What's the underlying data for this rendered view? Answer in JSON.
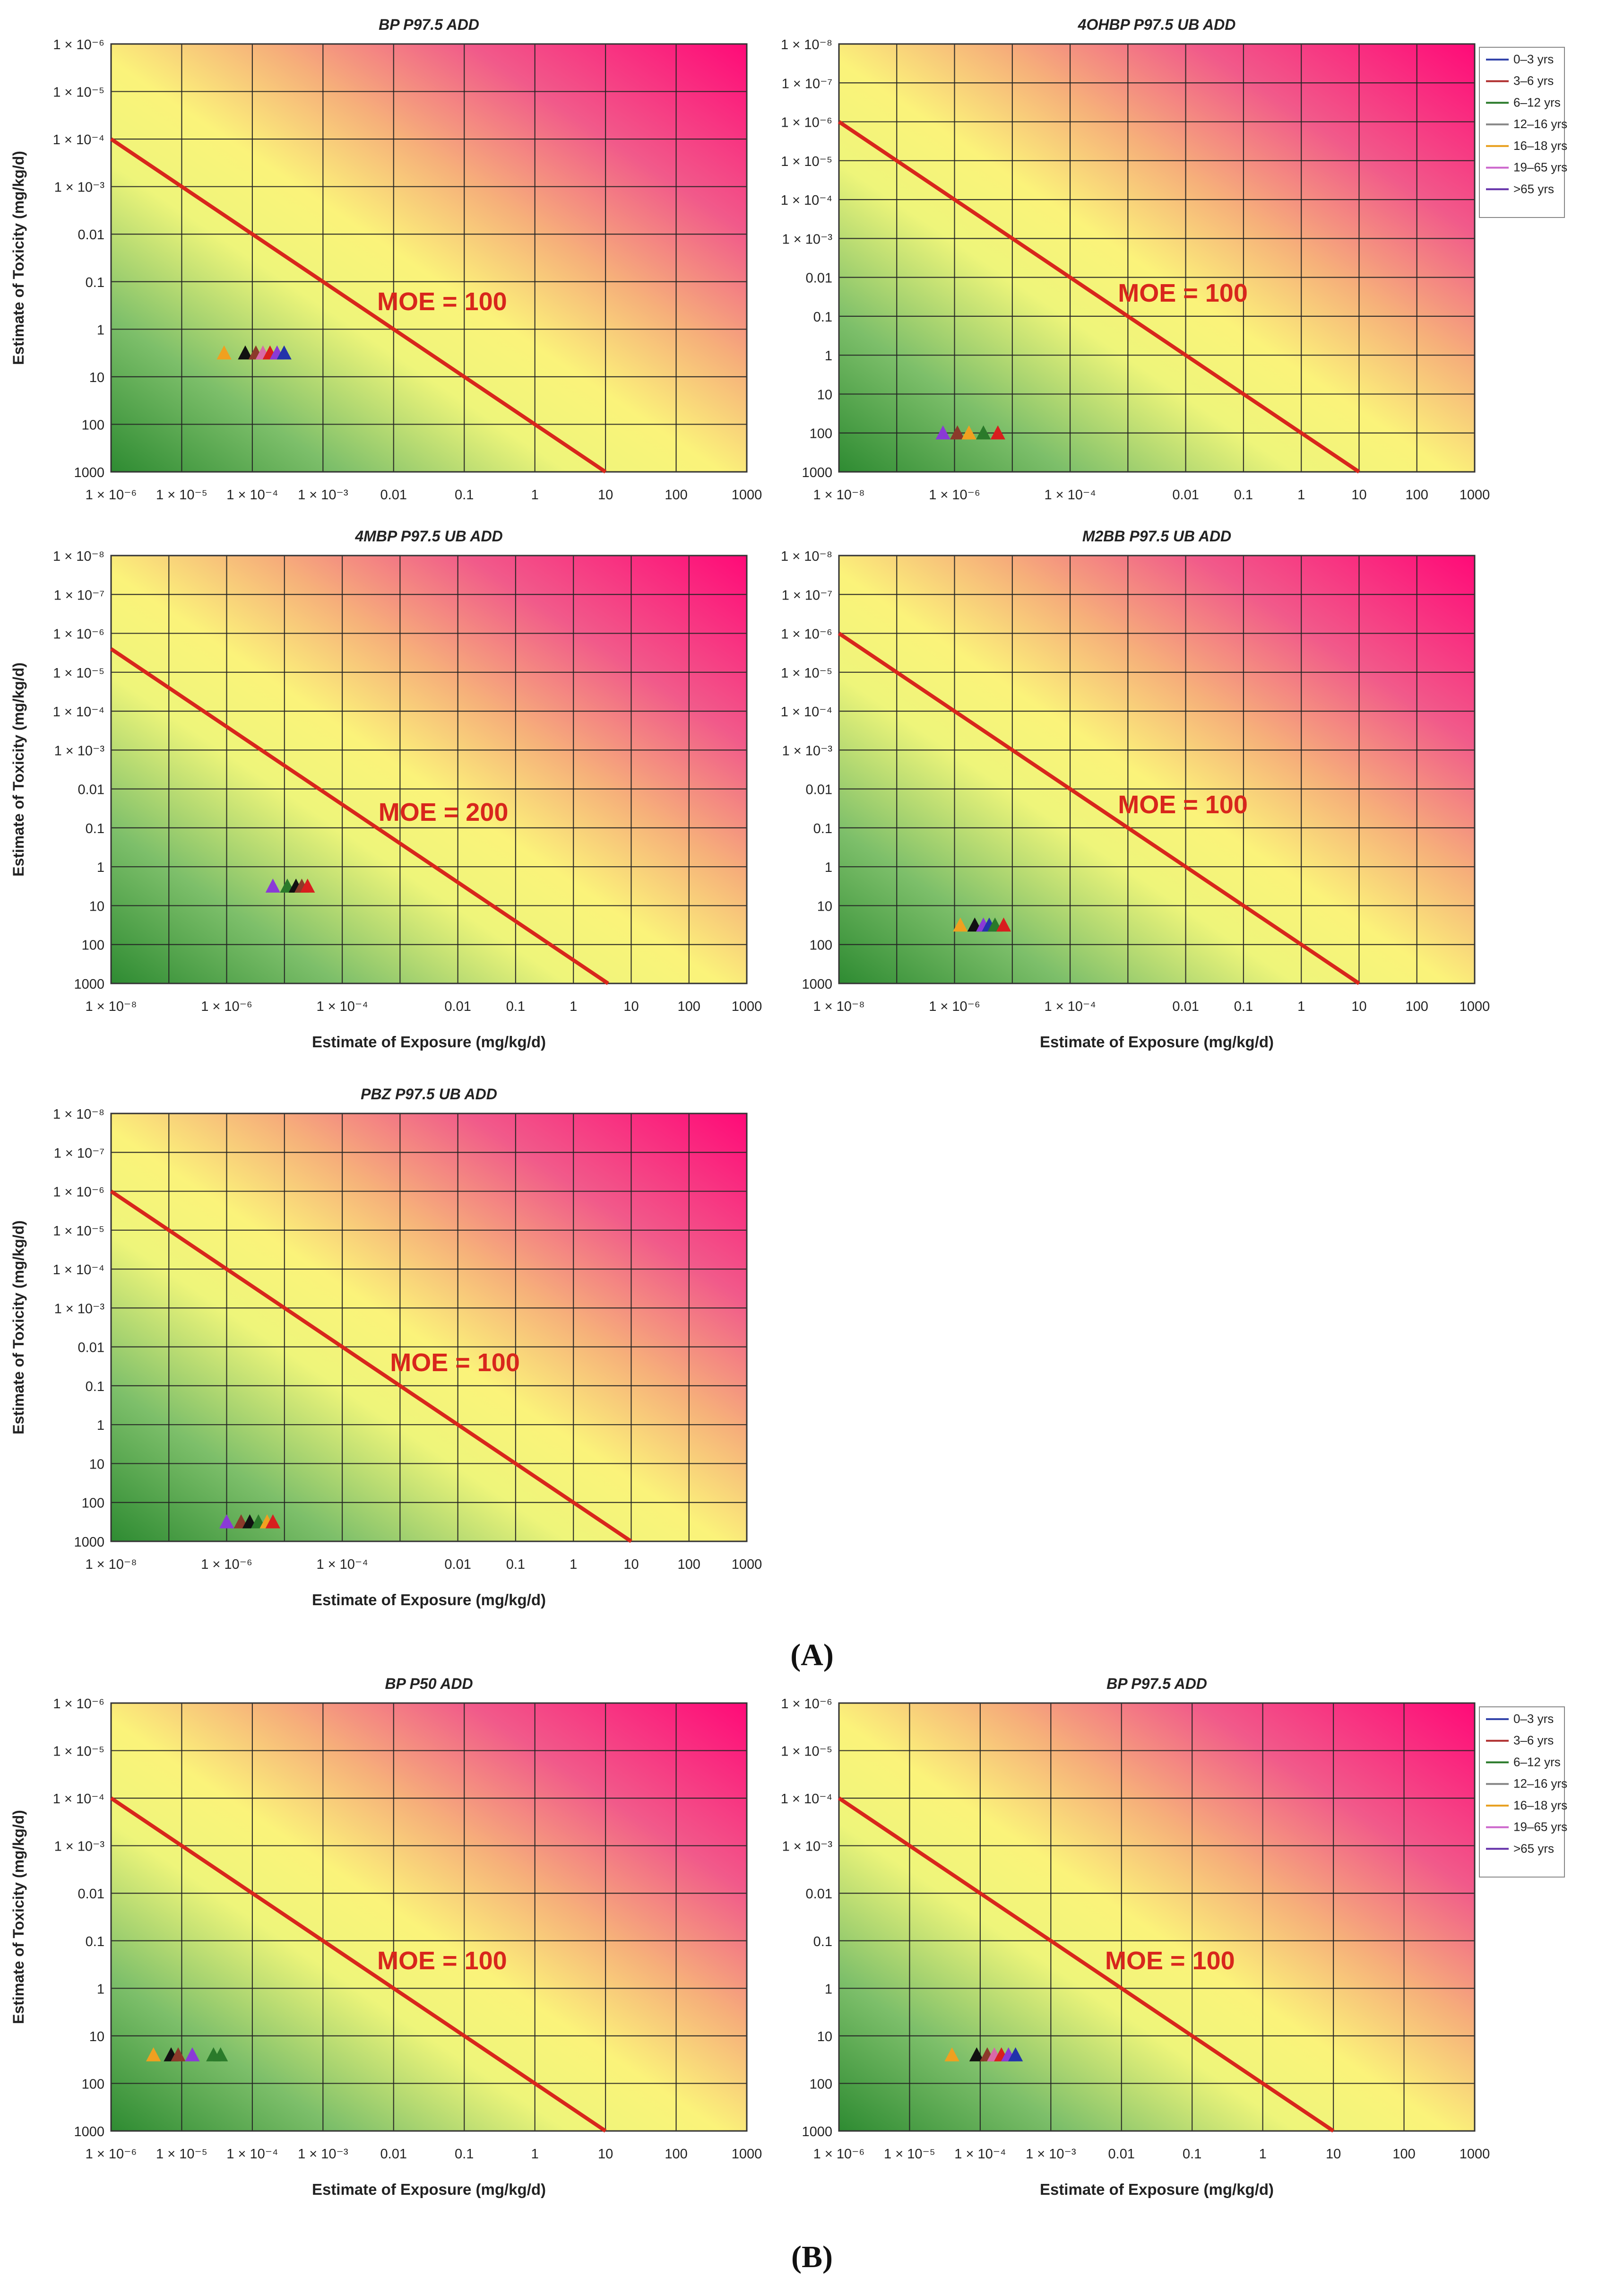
{
  "figure": {
    "panel_labels": [
      "(A)",
      "(B)"
    ]
  },
  "legend": {
    "entries": [
      "0–3 yrs",
      "3–6 yrs",
      "6–12 yrs",
      "12–16 yrs",
      "16–18 yrs",
      "19–65 yrs",
      ">65 yrs"
    ],
    "colors": [
      "#3344aa",
      "#b03030",
      "#2a7a2a",
      "#888888",
      "#e8a020",
      "#cc66cc",
      "#6633aa"
    ]
  },
  "marker_colors": {
    "orange": "#f0a020",
    "black": "#111111",
    "brown": "#8b3a2a",
    "pink": "#d86aa8",
    "purple": "#8a3ad6",
    "green": "#2a7a2a",
    "red": "#d81e1e",
    "blue": "#2233aa"
  },
  "chart_data": [
    {
      "type": "scatter",
      "panel": "A",
      "title": "BP P97.5 ADD",
      "xlabel": "",
      "ylabel": "Estimate of Toxicity (mg/kg/d)",
      "x_ticks": [
        "1 × 10⁻⁶",
        "1 × 10⁻⁵",
        "1 × 10⁻⁴",
        "1 × 10⁻³",
        "0.01",
        "0.1",
        "1",
        "10",
        "100",
        "1000"
      ],
      "y_ticks": [
        "1 × 10⁻⁶",
        "1 × 10⁻⁵",
        "1 × 10⁻⁴",
        "1 × 10⁻³",
        "0.01",
        "0.1",
        "1",
        "10",
        "100",
        "1000"
      ],
      "x_log_range": [
        -6,
        3
      ],
      "y_log_range": [
        -6,
        3
      ],
      "moe_label": "MOE = 100",
      "moe_line": {
        "x_log": [
          -6,
          1
        ],
        "y_log": [
          -4,
          3
        ]
      },
      "points": [
        {
          "x_log": -4.4,
          "y_log": 0.5,
          "color": "orange"
        },
        {
          "x_log": -4.1,
          "y_log": 0.5,
          "color": "black"
        },
        {
          "x_log": -3.95,
          "y_log": 0.5,
          "color": "brown"
        },
        {
          "x_log": -3.85,
          "y_log": 0.5,
          "color": "pink"
        },
        {
          "x_log": -3.75,
          "y_log": 0.5,
          "color": "red"
        },
        {
          "x_log": -3.65,
          "y_log": 0.5,
          "color": "purple"
        },
        {
          "x_log": -3.55,
          "y_log": 0.5,
          "color": "blue"
        }
      ]
    },
    {
      "type": "scatter",
      "panel": "A",
      "title": "4OHBP P97.5 UB ADD",
      "xlabel": "",
      "ylabel": "",
      "x_ticks": [
        "1 × 10⁻⁸",
        "",
        "1 × 10⁻⁶",
        "",
        "1 × 10⁻⁴",
        "",
        "0.01",
        "0.1",
        "1",
        "10",
        "100",
        "1000"
      ],
      "y_ticks": [
        "1 × 10⁻⁸",
        "1 × 10⁻⁷",
        "1 × 10⁻⁶",
        "1 × 10⁻⁵",
        "1 × 10⁻⁴",
        "1 × 10⁻³",
        "0.01",
        "0.1",
        "1",
        "10",
        "100",
        "1000"
      ],
      "x_log_range": [
        -8,
        3
      ],
      "y_log_range": [
        -8,
        3
      ],
      "moe_label": "MOE = 100",
      "moe_line": {
        "x_log": [
          -8,
          1
        ],
        "y_log": [
          -6,
          3
        ]
      },
      "points": [
        {
          "x_log": -6.2,
          "y_log": 2,
          "color": "purple"
        },
        {
          "x_log": -5.95,
          "y_log": 2,
          "color": "brown"
        },
        {
          "x_log": -5.75,
          "y_log": 2,
          "color": "orange"
        },
        {
          "x_log": -5.5,
          "y_log": 2,
          "color": "green"
        },
        {
          "x_log": -5.25,
          "y_log": 2,
          "color": "red"
        }
      ]
    },
    {
      "type": "scatter",
      "panel": "A",
      "title": "4MBP P97.5 UB ADD",
      "xlabel": "Estimate of Exposure (mg/kg/d)",
      "ylabel": "Estimate of Toxicity (mg/kg/d)",
      "x_ticks": [
        "1 × 10⁻⁸",
        "",
        "1 × 10⁻⁶",
        "",
        "1 × 10⁻⁴",
        "",
        "0.01",
        "0.1",
        "1",
        "10",
        "100",
        "1000"
      ],
      "y_ticks": [
        "1 × 10⁻⁸",
        "1 × 10⁻⁷",
        "1 × 10⁻⁶",
        "1 × 10⁻⁵",
        "1 × 10⁻⁴",
        "1 × 10⁻³",
        "0.01",
        "0.1",
        "1",
        "10",
        "100",
        "1000"
      ],
      "x_log_range": [
        -8,
        3
      ],
      "y_log_range": [
        -8,
        3
      ],
      "moe_label": "MOE = 200",
      "moe_line": {
        "x_log": [
          -8,
          0.6
        ],
        "y_log": [
          -5.6,
          3
        ]
      },
      "points": [
        {
          "x_log": -5.2,
          "y_log": 0.5,
          "color": "purple"
        },
        {
          "x_log": -4.95,
          "y_log": 0.5,
          "color": "green"
        },
        {
          "x_log": -4.8,
          "y_log": 0.5,
          "color": "black"
        },
        {
          "x_log": -4.7,
          "y_log": 0.5,
          "color": "brown"
        },
        {
          "x_log": -4.6,
          "y_log": 0.5,
          "color": "red"
        }
      ]
    },
    {
      "type": "scatter",
      "panel": "A",
      "title": "M2BB P97.5 UB ADD",
      "xlabel": "Estimate of Exposure (mg/kg/d)",
      "ylabel": "",
      "x_ticks": [
        "1 × 10⁻⁸",
        "",
        "1 × 10⁻⁶",
        "",
        "1 × 10⁻⁴",
        "",
        "0.01",
        "0.1",
        "1",
        "10",
        "100",
        "1000"
      ],
      "y_ticks": [
        "1 × 10⁻⁸",
        "1 × 10⁻⁷",
        "1 × 10⁻⁶",
        "1 × 10⁻⁵",
        "1 × 10⁻⁴",
        "1 × 10⁻³",
        "0.01",
        "0.1",
        "1",
        "10",
        "100",
        "1000"
      ],
      "x_log_range": [
        -8,
        3
      ],
      "y_log_range": [
        -8,
        3
      ],
      "moe_label": "MOE = 100",
      "moe_line": {
        "x_log": [
          -8,
          1
        ],
        "y_log": [
          -6,
          3
        ]
      },
      "points": [
        {
          "x_log": -5.9,
          "y_log": 1.5,
          "color": "orange"
        },
        {
          "x_log": -5.65,
          "y_log": 1.5,
          "color": "black"
        },
        {
          "x_log": -5.5,
          "y_log": 1.5,
          "color": "purple"
        },
        {
          "x_log": -5.4,
          "y_log": 1.5,
          "color": "blue"
        },
        {
          "x_log": -5.3,
          "y_log": 1.5,
          "color": "green"
        },
        {
          "x_log": -5.15,
          "y_log": 1.5,
          "color": "red"
        }
      ]
    },
    {
      "type": "scatter",
      "panel": "A",
      "title": "PBZ P97.5 UB ADD",
      "xlabel": "Estimate of Exposure (mg/kg/d)",
      "ylabel": "Estimate of Toxicity (mg/kg/d)",
      "x_ticks": [
        "1 × 10⁻⁸",
        "",
        "1 × 10⁻⁶",
        "",
        "1 × 10⁻⁴",
        "",
        "0.01",
        "0.1",
        "1",
        "10",
        "100",
        "1000"
      ],
      "y_ticks": [
        "1 × 10⁻⁸",
        "1 × 10⁻⁷",
        "1 × 10⁻⁶",
        "1 × 10⁻⁵",
        "1 × 10⁻⁴",
        "1 × 10⁻³",
        "0.01",
        "0.1",
        "1",
        "10",
        "100",
        "1000"
      ],
      "x_log_range": [
        -8,
        3
      ],
      "y_log_range": [
        -8,
        3
      ],
      "moe_label": "MOE = 100",
      "moe_line": {
        "x_log": [
          -8,
          1
        ],
        "y_log": [
          -6,
          3
        ]
      },
      "points": [
        {
          "x_log": -6.0,
          "y_log": 2.5,
          "color": "purple"
        },
        {
          "x_log": -5.75,
          "y_log": 2.5,
          "color": "brown"
        },
        {
          "x_log": -5.6,
          "y_log": 2.5,
          "color": "black"
        },
        {
          "x_log": -5.45,
          "y_log": 2.5,
          "color": "green"
        },
        {
          "x_log": -5.3,
          "y_log": 2.5,
          "color": "orange"
        },
        {
          "x_log": -5.2,
          "y_log": 2.5,
          "color": "red"
        }
      ]
    },
    {
      "type": "scatter",
      "panel": "B",
      "title": "BP P50 ADD",
      "xlabel": "Estimate of Exposure (mg/kg/d)",
      "ylabel": "Estimate of Toxicity (mg/kg/d)",
      "x_ticks": [
        "1 × 10⁻⁶",
        "1 × 10⁻⁵",
        "1 × 10⁻⁴",
        "1 × 10⁻³",
        "0.01",
        "0.1",
        "1",
        "10",
        "100",
        "1000"
      ],
      "y_ticks": [
        "1 × 10⁻⁶",
        "1 × 10⁻⁵",
        "1 × 10⁻⁴",
        "1 × 10⁻³",
        "0.01",
        "0.1",
        "1",
        "10",
        "100",
        "1000"
      ],
      "x_log_range": [
        -6,
        3
      ],
      "y_log_range": [
        -6,
        3
      ],
      "moe_label": "MOE = 100",
      "moe_line": {
        "x_log": [
          -6,
          1
        ],
        "y_log": [
          -4,
          3
        ]
      },
      "points": [
        {
          "x_log": -5.4,
          "y_log": 1.4,
          "color": "orange"
        },
        {
          "x_log": -5.15,
          "y_log": 1.4,
          "color": "black"
        },
        {
          "x_log": -5.05,
          "y_log": 1.4,
          "color": "brown"
        },
        {
          "x_log": -4.85,
          "y_log": 1.4,
          "color": "purple"
        },
        {
          "x_log": -4.55,
          "y_log": 1.4,
          "color": "green"
        },
        {
          "x_log": -4.45,
          "y_log": 1.4,
          "color": "green"
        }
      ]
    },
    {
      "type": "scatter",
      "panel": "B",
      "title": "BP P97.5 ADD",
      "xlabel": "Estimate of Exposure (mg/kg/d)",
      "ylabel": "",
      "x_ticks": [
        "1 × 10⁻⁶",
        "1 × 10⁻⁵",
        "1 × 10⁻⁴",
        "1 × 10⁻³",
        "0.01",
        "0.1",
        "1",
        "10",
        "100",
        "1000"
      ],
      "y_ticks": [
        "1 × 10⁻⁶",
        "1 × 10⁻⁵",
        "1 × 10⁻⁴",
        "1 × 10⁻³",
        "0.01",
        "0.1",
        "1",
        "10",
        "100",
        "1000"
      ],
      "x_log_range": [
        -6,
        3
      ],
      "y_log_range": [
        -6,
        3
      ],
      "moe_label": "MOE = 100",
      "moe_line": {
        "x_log": [
          -6,
          1
        ],
        "y_log": [
          -4,
          3
        ]
      },
      "points": [
        {
          "x_log": -4.4,
          "y_log": 1.4,
          "color": "orange"
        },
        {
          "x_log": -4.05,
          "y_log": 1.4,
          "color": "black"
        },
        {
          "x_log": -3.9,
          "y_log": 1.4,
          "color": "brown"
        },
        {
          "x_log": -3.8,
          "y_log": 1.4,
          "color": "pink"
        },
        {
          "x_log": -3.7,
          "y_log": 1.4,
          "color": "red"
        },
        {
          "x_log": -3.6,
          "y_log": 1.4,
          "color": "purple"
        },
        {
          "x_log": -3.5,
          "y_log": 1.4,
          "color": "blue"
        }
      ]
    }
  ]
}
